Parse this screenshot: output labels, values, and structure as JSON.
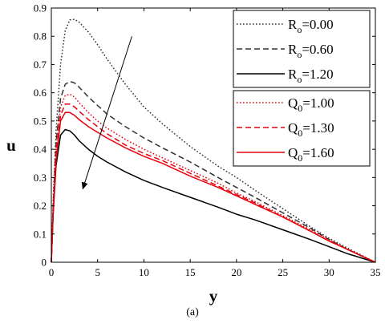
{
  "caption": "(a)",
  "chart_data": {
    "type": "line",
    "xlabel": "y",
    "ylabel": "u",
    "xlim": [
      0,
      35
    ],
    "ylim": [
      0,
      0.9
    ],
    "xticks": [
      0,
      5,
      10,
      15,
      20,
      25,
      30,
      35
    ],
    "yticks": [
      0,
      0.1,
      0.2,
      0.3,
      0.4,
      0.5,
      0.6,
      0.7,
      0.8,
      0.9
    ],
    "grid": false,
    "legend_position": "top-right",
    "arrow": {
      "from": [
        8.7,
        0.8
      ],
      "to": [
        3.4,
        0.26
      ],
      "meaning": "increasing parameter"
    },
    "series": [
      {
        "name": "R_o=0.00",
        "label_main": "R",
        "label_sub": "o",
        "label_rest": "=0.00",
        "color": "#303030",
        "dash": "dotted",
        "x": [
          0,
          0.2,
          0.5,
          1,
          1.5,
          2,
          2.5,
          3,
          4,
          5,
          6,
          8,
          10,
          12,
          15,
          18,
          20,
          22,
          25,
          28,
          30,
          32,
          35
        ],
        "y": [
          0,
          0.22,
          0.46,
          0.7,
          0.82,
          0.858,
          0.86,
          0.85,
          0.815,
          0.77,
          0.72,
          0.63,
          0.55,
          0.49,
          0.41,
          0.34,
          0.3,
          0.255,
          0.19,
          0.125,
          0.085,
          0.05,
          0
        ]
      },
      {
        "name": "R_o=0.60",
        "label_main": "R",
        "label_sub": "o",
        "label_rest": "=0.60",
        "color": "#303030",
        "dash": "dashed",
        "x": [
          0,
          0.2,
          0.5,
          1,
          1.5,
          2,
          2.5,
          3,
          4,
          5,
          6,
          8,
          10,
          12,
          15,
          18,
          20,
          22,
          25,
          28,
          30,
          32,
          35
        ],
        "y": [
          0,
          0.2,
          0.42,
          0.58,
          0.63,
          0.64,
          0.635,
          0.62,
          0.585,
          0.555,
          0.525,
          0.48,
          0.44,
          0.405,
          0.355,
          0.3,
          0.265,
          0.23,
          0.175,
          0.12,
          0.08,
          0.045,
          0
        ]
      },
      {
        "name": "R_o=1.20",
        "label_main": "R",
        "label_sub": "o",
        "label_rest": "=1.20",
        "color": "#000000",
        "dash": "solid",
        "x": [
          0,
          0.2,
          0.5,
          1,
          1.5,
          2,
          2.5,
          3,
          4,
          5,
          6,
          8,
          10,
          12,
          15,
          18,
          20,
          22,
          25,
          28,
          30,
          32,
          35
        ],
        "y": [
          0,
          0.17,
          0.34,
          0.45,
          0.47,
          0.465,
          0.45,
          0.43,
          0.4,
          0.375,
          0.355,
          0.32,
          0.29,
          0.265,
          0.23,
          0.195,
          0.17,
          0.15,
          0.115,
          0.08,
          0.055,
          0.03,
          0
        ]
      },
      {
        "name": "Q_0=1.00",
        "label_main": "Q",
        "label_sub": "0",
        "label_rest": "=1.00",
        "color": "#e8000b",
        "dash": "dotted",
        "x": [
          0,
          0.2,
          0.5,
          1,
          1.5,
          2,
          2.5,
          3,
          4,
          5,
          6,
          8,
          10,
          12,
          15,
          18,
          20,
          22,
          25,
          28,
          30,
          32,
          35
        ],
        "y": [
          0,
          0.19,
          0.4,
          0.55,
          0.59,
          0.595,
          0.585,
          0.565,
          0.53,
          0.5,
          0.475,
          0.435,
          0.4,
          0.37,
          0.325,
          0.28,
          0.245,
          0.215,
          0.165,
          0.115,
          0.08,
          0.045,
          0
        ]
      },
      {
        "name": "Q_0=1.30",
        "label_main": "Q",
        "label_sub": "0",
        "label_rest": "=1.30",
        "color": "#e8000b",
        "dash": "dashed",
        "x": [
          0,
          0.2,
          0.5,
          1,
          1.5,
          2,
          2.5,
          3,
          4,
          5,
          6,
          8,
          10,
          12,
          15,
          18,
          20,
          22,
          25,
          28,
          30,
          32,
          35
        ],
        "y": [
          0,
          0.18,
          0.38,
          0.52,
          0.56,
          0.56,
          0.55,
          0.535,
          0.505,
          0.48,
          0.455,
          0.415,
          0.385,
          0.36,
          0.315,
          0.27,
          0.24,
          0.21,
          0.16,
          0.11,
          0.075,
          0.045,
          0
        ]
      },
      {
        "name": "Q_0=1.60",
        "label_main": "Q",
        "label_sub": "0",
        "label_rest": "=1.60",
        "color": "#e8000b",
        "dash": "solid",
        "x": [
          0,
          0.2,
          0.5,
          1,
          1.5,
          2,
          2.5,
          3,
          4,
          5,
          6,
          8,
          10,
          12,
          15,
          18,
          20,
          22,
          25,
          28,
          30,
          32,
          35
        ],
        "y": [
          0,
          0.18,
          0.36,
          0.5,
          0.53,
          0.53,
          0.52,
          0.505,
          0.48,
          0.46,
          0.44,
          0.405,
          0.375,
          0.35,
          0.305,
          0.265,
          0.235,
          0.205,
          0.16,
          0.11,
          0.075,
          0.045,
          0
        ]
      }
    ]
  }
}
